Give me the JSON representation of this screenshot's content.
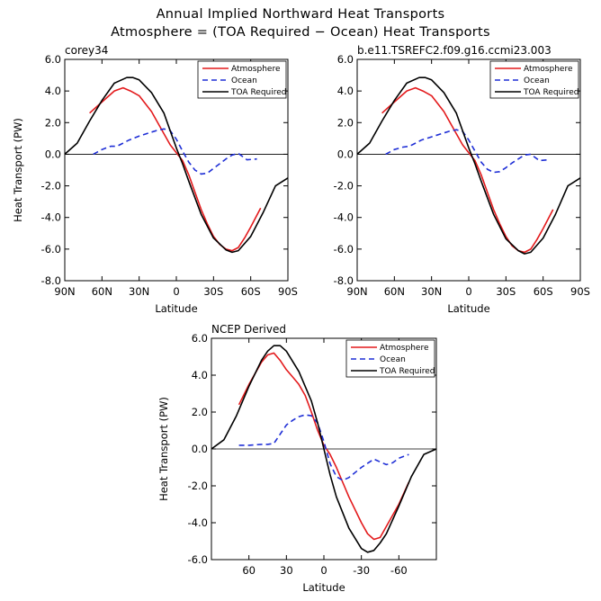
{
  "figure": {
    "title_line1": "Annual Implied Northward Heat Transports",
    "title_line2": "Atmosphere = (TOA Required − Ocean) Heat Transports"
  },
  "chart_data": [
    {
      "type": "line",
      "title": "corey34",
      "xlabel": "Latitude",
      "ylabel": "Heat Transport (PW)",
      "xlim": [
        90,
        -90
      ],
      "ylim": [
        -8,
        6
      ],
      "xticks": [
        90,
        60,
        30,
        0,
        -30,
        -60,
        -90
      ],
      "xtick_labels": [
        "90N",
        "60N",
        "30N",
        "0",
        "30S",
        "60S",
        "90S"
      ],
      "yticks": [
        6,
        4,
        2,
        0,
        -2,
        -4,
        -6,
        -8
      ],
      "ytick_labels": [
        "6.0",
        "4.0",
        "2.0",
        "0.0",
        "-2.0",
        "-4.0",
        "-6.0",
        "-8.0"
      ],
      "legend": "top-right",
      "series": [
        {
          "name": "Atmosphere",
          "color": "#e31a1c",
          "dash": "solid",
          "x": [
            70,
            60,
            50,
            43,
            37,
            30,
            20,
            10,
            5,
            0,
            -5,
            -10,
            -15,
            -20,
            -25,
            -30,
            -35,
            -40,
            -45,
            -50,
            -55,
            -60,
            -68
          ],
          "y": [
            2.6,
            3.3,
            4.0,
            4.2,
            4.0,
            3.7,
            2.7,
            1.3,
            0.6,
            0.1,
            -0.4,
            -1.3,
            -2.4,
            -3.5,
            -4.4,
            -5.2,
            -5.7,
            -6.0,
            -6.1,
            -5.9,
            -5.3,
            -4.6,
            -3.4
          ]
        },
        {
          "name": "Ocean",
          "color": "#1f2fd6",
          "dash": "dashed",
          "x": [
            67,
            60,
            53,
            48,
            43,
            38,
            30,
            22,
            16,
            10,
            5,
            0,
            -5,
            -10,
            -15,
            -20,
            -25,
            -30,
            -35,
            -40,
            -45,
            -50,
            -57,
            -65
          ],
          "y": [
            0.0,
            0.3,
            0.5,
            0.5,
            0.7,
            0.9,
            1.15,
            1.35,
            1.5,
            1.6,
            1.5,
            0.95,
            0.2,
            -0.5,
            -1.0,
            -1.25,
            -1.2,
            -0.9,
            -0.6,
            -0.3,
            -0.05,
            0.05,
            -0.35,
            -0.3
          ]
        },
        {
          "name": "TOA Required",
          "color": "#000000",
          "dash": "solid",
          "x": [
            90,
            80,
            70,
            60,
            50,
            40,
            35,
            30,
            20,
            10,
            5,
            0,
            -5,
            -10,
            -20,
            -30,
            -40,
            -45,
            -50,
            -60,
            -70,
            -80,
            -90
          ],
          "y": [
            0.0,
            0.7,
            2.1,
            3.4,
            4.5,
            4.85,
            4.85,
            4.7,
            3.9,
            2.6,
            1.5,
            0.4,
            -0.6,
            -1.7,
            -3.8,
            -5.3,
            -6.05,
            -6.2,
            -6.1,
            -5.2,
            -3.7,
            -2.0,
            -1.5
          ]
        }
      ]
    },
    {
      "type": "line",
      "title": "b.e11.TSREFC2.f09.g16.ccmi23.003",
      "xlabel": "Latitude",
      "ylabel": "",
      "xlim": [
        90,
        -90
      ],
      "ylim": [
        -8,
        6
      ],
      "xticks": [
        90,
        60,
        30,
        0,
        -30,
        -60,
        -90
      ],
      "xtick_labels": [
        "90N",
        "60N",
        "30N",
        "0",
        "30S",
        "60S",
        "90S"
      ],
      "yticks": [
        6,
        4,
        2,
        0,
        -2,
        -4,
        -6,
        -8
      ],
      "ytick_labels": [
        "6.0",
        "4.0",
        "2.0",
        "0.0",
        "-2.0",
        "-4.0",
        "-6.0",
        "-8.0"
      ],
      "legend": "top-right",
      "series": [
        {
          "name": "Atmosphere",
          "color": "#e31a1c",
          "dash": "solid",
          "x": [
            70,
            60,
            50,
            43,
            37,
            30,
            20,
            10,
            5,
            0,
            -5,
            -10,
            -15,
            -20,
            -25,
            -30,
            -35,
            -40,
            -45,
            -50,
            -55,
            -60,
            -68
          ],
          "y": [
            2.6,
            3.3,
            4.0,
            4.2,
            4.0,
            3.7,
            2.7,
            1.3,
            0.6,
            0.1,
            -0.4,
            -1.3,
            -2.4,
            -3.5,
            -4.4,
            -5.2,
            -5.8,
            -6.1,
            -6.2,
            -6.0,
            -5.4,
            -4.7,
            -3.5
          ]
        },
        {
          "name": "Ocean",
          "color": "#1f2fd6",
          "dash": "dashed",
          "x": [
            67,
            60,
            53,
            48,
            43,
            38,
            30,
            22,
            16,
            10,
            5,
            0,
            -5,
            -10,
            -15,
            -20,
            -25,
            -30,
            -35,
            -40,
            -45,
            -50,
            -57,
            -65
          ],
          "y": [
            0.0,
            0.3,
            0.45,
            0.5,
            0.7,
            0.9,
            1.1,
            1.3,
            1.45,
            1.55,
            1.45,
            0.9,
            0.2,
            -0.5,
            -0.95,
            -1.15,
            -1.1,
            -0.85,
            -0.55,
            -0.3,
            -0.05,
            0.0,
            -0.4,
            -0.35
          ]
        },
        {
          "name": "TOA Required",
          "color": "#000000",
          "dash": "solid",
          "x": [
            90,
            80,
            70,
            60,
            50,
            40,
            35,
            30,
            20,
            10,
            5,
            0,
            -5,
            -10,
            -20,
            -30,
            -40,
            -45,
            -50,
            -60,
            -70,
            -80,
            -90
          ],
          "y": [
            0.0,
            0.7,
            2.1,
            3.4,
            4.5,
            4.85,
            4.85,
            4.7,
            3.9,
            2.6,
            1.5,
            0.4,
            -0.6,
            -1.7,
            -3.8,
            -5.35,
            -6.1,
            -6.3,
            -6.2,
            -5.3,
            -3.8,
            -2.0,
            -1.5
          ]
        }
      ]
    },
    {
      "type": "line",
      "title": "NCEP Derived",
      "xlabel": "Latitude",
      "ylabel": "Heat Transport (PW)",
      "xlim": [
        90,
        -90
      ],
      "ylim": [
        -6,
        6
      ],
      "xticks": [
        60,
        30,
        0,
        -30,
        -60
      ],
      "xtick_labels": [
        "60",
        "30",
        "0",
        "-30",
        "-60"
      ],
      "yticks": [
        6,
        4,
        2,
        0,
        -2,
        -4,
        -6
      ],
      "ytick_labels": [
        "6.0",
        "4.0",
        "2.0",
        "0.0",
        "-2.0",
        "-4.0",
        "-6.0"
      ],
      "legend": "top-right",
      "series": [
        {
          "name": "Atmosphere",
          "color": "#e31a1c",
          "dash": "solid",
          "x": [
            68,
            60,
            50,
            45,
            40,
            35,
            30,
            25,
            20,
            15,
            10,
            5,
            0,
            -5,
            -10,
            -20,
            -30,
            -35,
            -40,
            -45,
            -50,
            -60,
            -68
          ],
          "y": [
            2.4,
            3.5,
            4.7,
            5.1,
            5.2,
            4.8,
            4.3,
            3.9,
            3.5,
            2.9,
            2.0,
            1.0,
            0.2,
            -0.3,
            -1.0,
            -2.6,
            -4.0,
            -4.6,
            -4.9,
            -4.8,
            -4.2,
            -3.0,
            -1.8
          ]
        },
        {
          "name": "Ocean",
          "color": "#1f2fd6",
          "dash": "dashed",
          "x": [
            68,
            60,
            50,
            45,
            40,
            35,
            30,
            25,
            20,
            15,
            10,
            5,
            0,
            -5,
            -10,
            -15,
            -20,
            -30,
            -40,
            -45,
            -50,
            -55,
            -60,
            -68
          ],
          "y": [
            0.2,
            0.2,
            0.25,
            0.25,
            0.3,
            0.8,
            1.3,
            1.55,
            1.75,
            1.85,
            1.8,
            1.4,
            0.4,
            -0.8,
            -1.5,
            -1.7,
            -1.55,
            -1.0,
            -0.55,
            -0.7,
            -0.85,
            -0.75,
            -0.5,
            -0.3
          ]
        },
        {
          "name": "TOA Required",
          "color": "#000000",
          "dash": "solid",
          "x": [
            90,
            80,
            70,
            60,
            50,
            45,
            40,
            35,
            30,
            20,
            10,
            5,
            0,
            -5,
            -10,
            -20,
            -30,
            -35,
            -40,
            -45,
            -50,
            -60,
            -70,
            -80,
            -90
          ],
          "y": [
            0.0,
            0.5,
            1.8,
            3.4,
            4.8,
            5.3,
            5.6,
            5.6,
            5.3,
            4.2,
            2.6,
            1.4,
            0.0,
            -1.4,
            -2.6,
            -4.3,
            -5.4,
            -5.6,
            -5.5,
            -5.1,
            -4.6,
            -3.1,
            -1.5,
            -0.3,
            0.0
          ]
        }
      ]
    }
  ]
}
